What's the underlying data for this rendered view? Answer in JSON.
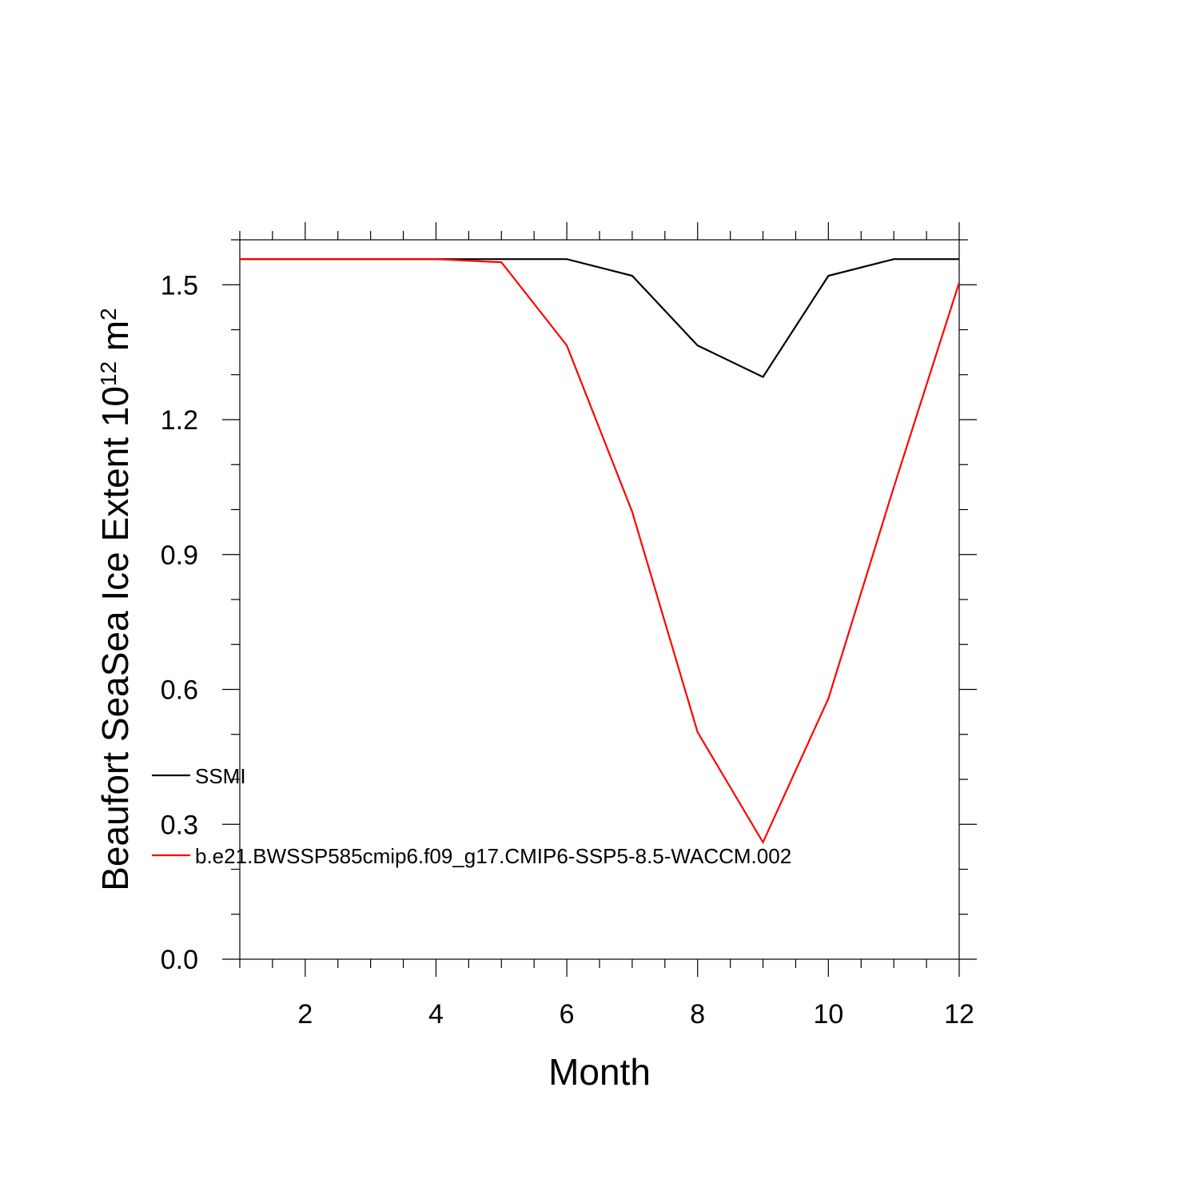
{
  "chart_data": {
    "type": "line",
    "title": "",
    "xlabel": "Month",
    "ylabel": {
      "main": "Beaufort SeaSea Ice Extent 10",
      "exp": "12",
      "unit": " m",
      "unit_exp": "2"
    },
    "xlim": [
      1,
      12
    ],
    "ylim": [
      0.0,
      1.6
    ],
    "x_ticks": [
      2,
      4,
      6,
      8,
      10,
      12
    ],
    "x_tick_labels": [
      "2",
      "4",
      "6",
      "8",
      "10",
      "12"
    ],
    "y_ticks": [
      0.0,
      0.3,
      0.6,
      0.9,
      1.2,
      1.5
    ],
    "y_tick_labels": [
      "0.0",
      "0.3",
      "0.6",
      "0.9",
      "1.2",
      "1.5"
    ],
    "grid": false,
    "legend_position": "lower-left inside",
    "x": [
      1,
      2,
      3,
      4,
      5,
      6,
      7,
      8,
      9,
      10,
      11,
      12
    ],
    "series": [
      {
        "name": "SSMI",
        "color": "#000000",
        "values": [
          1.557,
          1.557,
          1.557,
          1.557,
          1.557,
          1.557,
          1.52,
          1.365,
          1.295,
          1.52,
          1.557,
          1.557
        ]
      },
      {
        "name": "b.e21.BWSSP585cmip6.f09_g17.CMIP6-SSP5-8.5-WACCM.002",
        "color": "#ff0000",
        "values": [
          1.557,
          1.557,
          1.557,
          1.557,
          1.55,
          1.365,
          0.995,
          0.505,
          0.26,
          0.58,
          1.05,
          1.505
        ]
      }
    ]
  }
}
